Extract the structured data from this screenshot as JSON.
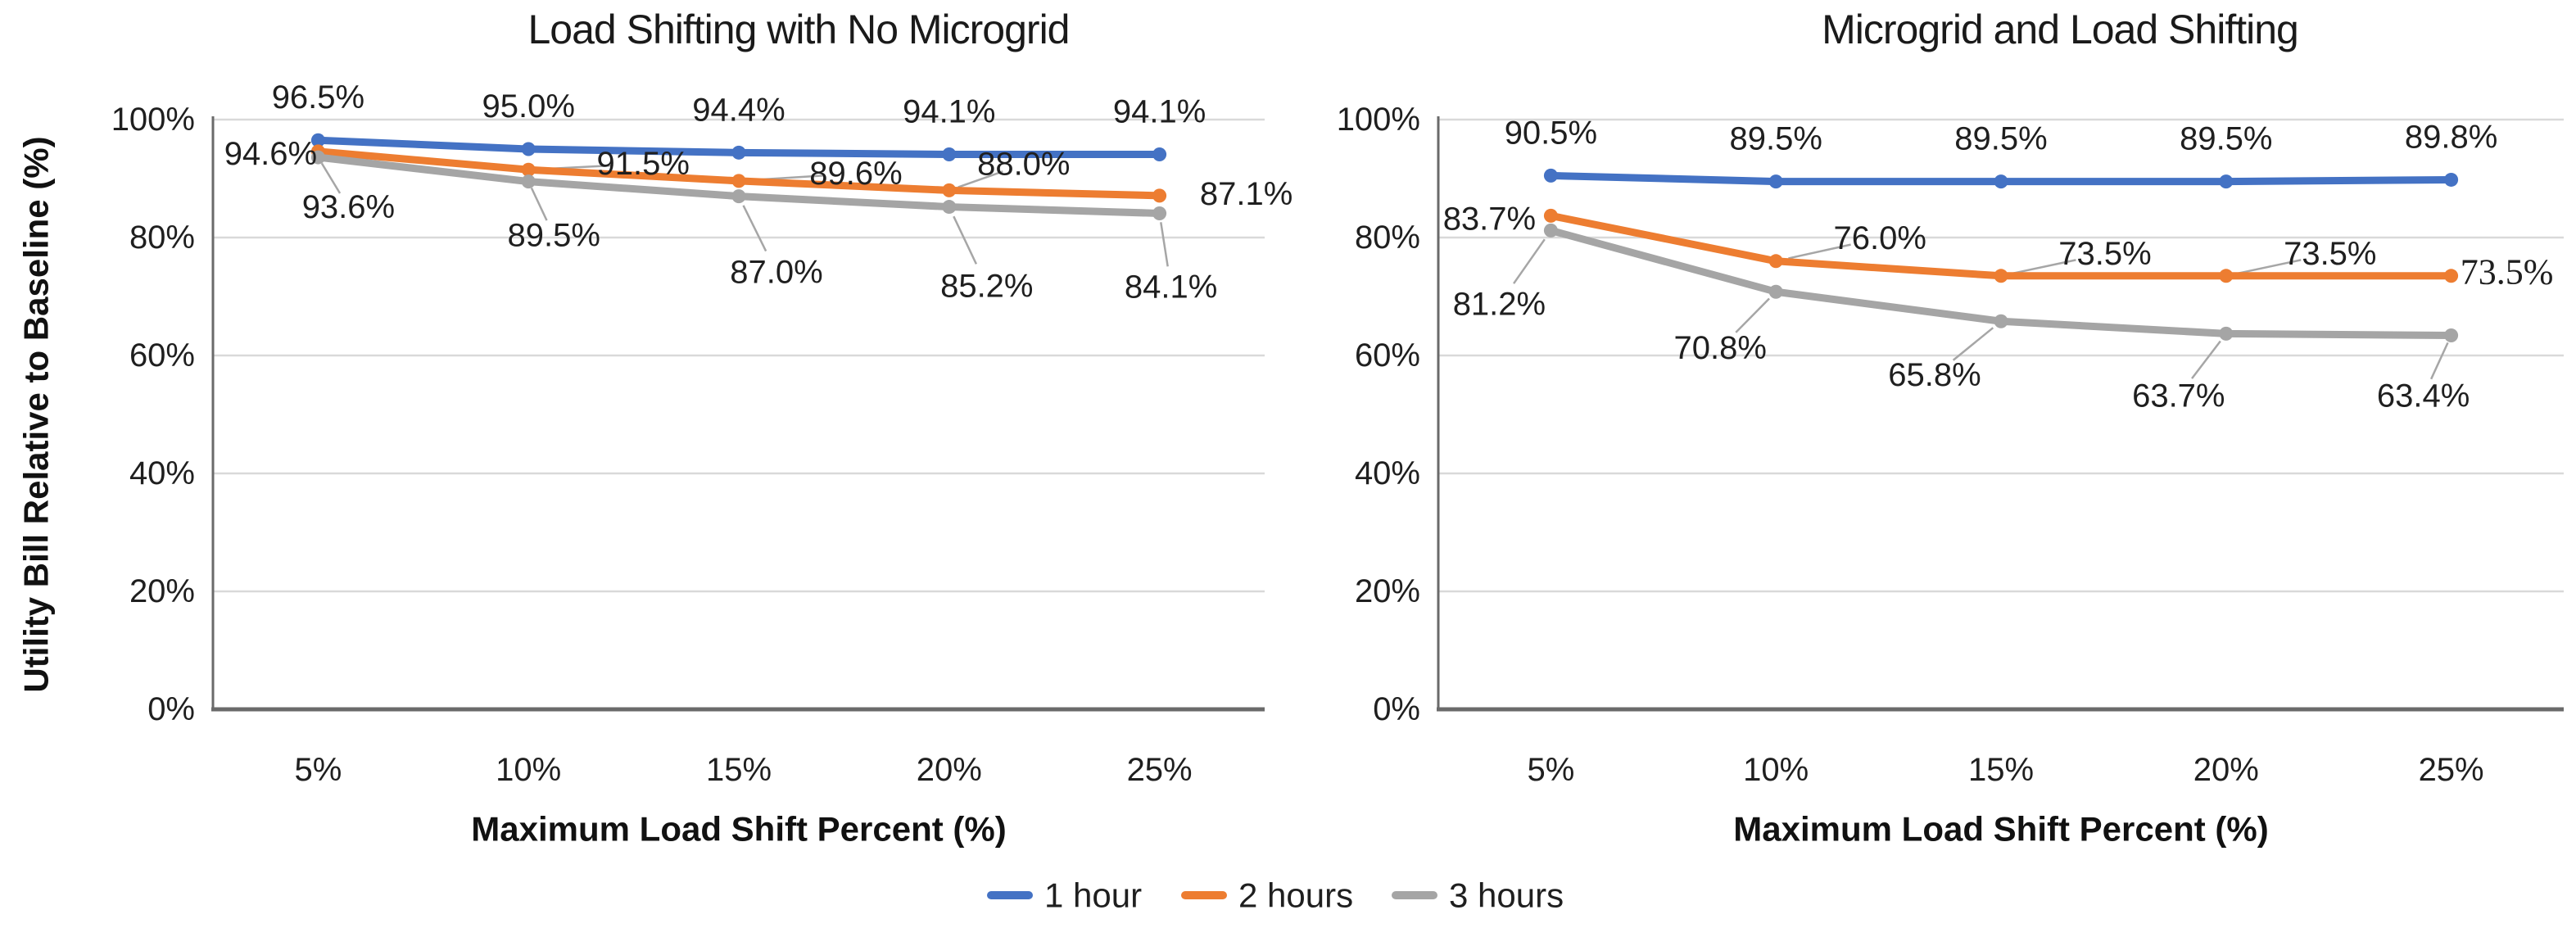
{
  "figure": {
    "background": "#ffffff",
    "text_color": "#1f1f1f",
    "grid_color": "#d9d9d9",
    "axis_color": "#6a6a6a",
    "leader_color": "#a6a6a6"
  },
  "legend": {
    "position": "bottom-center",
    "items": [
      {
        "label": "1 hour",
        "color": "#4472C4"
      },
      {
        "label": "2 hours",
        "color": "#ED7D31"
      },
      {
        "label": "3 hours",
        "color": "#A5A5A5"
      }
    ]
  },
  "chart_data": [
    {
      "type": "line",
      "title": "Load Shifting with No Microgrid",
      "xlabel": "Maximum Load Shift Percent (%)",
      "ylabel": "Utility Bill Relative to Baseline (%)",
      "categories": [
        "5%",
        "10%",
        "15%",
        "20%",
        "25%"
      ],
      "yticks": [
        "0%",
        "20%",
        "40%",
        "60%",
        "80%",
        "100%"
      ],
      "ytick_values": [
        0,
        20,
        40,
        60,
        80,
        100
      ],
      "ylim": [
        0,
        100
      ],
      "grid": true,
      "marker": "circle",
      "series": [
        {
          "name": "1 hour",
          "color": "#4472C4",
          "values": [
            96.5,
            95.0,
            94.4,
            94.1,
            94.1
          ],
          "labels": [
            "96.5%",
            "95.0%",
            "94.4%",
            "94.1%",
            "94.1%"
          ]
        },
        {
          "name": "2 hours",
          "color": "#ED7D31",
          "values": [
            94.6,
            91.5,
            89.6,
            88.0,
            87.1
          ],
          "labels": [
            "94.6%",
            "91.5%",
            "89.6%",
            "88.0%",
            "87.1%"
          ]
        },
        {
          "name": "3 hours",
          "color": "#A5A5A5",
          "values": [
            93.6,
            89.5,
            87.0,
            85.2,
            84.1
          ],
          "labels": [
            "93.6%",
            "89.5%",
            "87.0%",
            "85.2%",
            "84.1%"
          ]
        }
      ]
    },
    {
      "type": "line",
      "title": "Microgrid and Load Shifting",
      "xlabel": "Maximum Load Shift Percent (%)",
      "ylabel": "",
      "categories": [
        "5%",
        "10%",
        "15%",
        "20%",
        "25%"
      ],
      "yticks": [
        "0%",
        "20%",
        "40%",
        "60%",
        "80%",
        "100%"
      ],
      "ytick_values": [
        0,
        20,
        40,
        60,
        80,
        100
      ],
      "ylim": [
        0,
        100
      ],
      "grid": true,
      "marker": "circle",
      "series": [
        {
          "name": "1 hour",
          "color": "#4472C4",
          "values": [
            90.5,
            89.5,
            89.5,
            89.5,
            89.8
          ],
          "labels": [
            "90.5%",
            "89.5%",
            "89.5%",
            "89.5%",
            "89.8%"
          ]
        },
        {
          "name": "2 hours",
          "color": "#ED7D31",
          "values": [
            83.7,
            76.0,
            73.5,
            73.5,
            73.5
          ],
          "labels": [
            "83.7%",
            "76.0%",
            "73.5%",
            "73.5%",
            "73.5%"
          ]
        },
        {
          "name": "3 hours",
          "color": "#A5A5A5",
          "values": [
            81.2,
            70.8,
            65.8,
            63.7,
            63.4
          ],
          "labels": [
            "81.2%",
            "70.8%",
            "65.8%",
            "63.7%",
            "63.4%"
          ]
        }
      ]
    }
  ]
}
